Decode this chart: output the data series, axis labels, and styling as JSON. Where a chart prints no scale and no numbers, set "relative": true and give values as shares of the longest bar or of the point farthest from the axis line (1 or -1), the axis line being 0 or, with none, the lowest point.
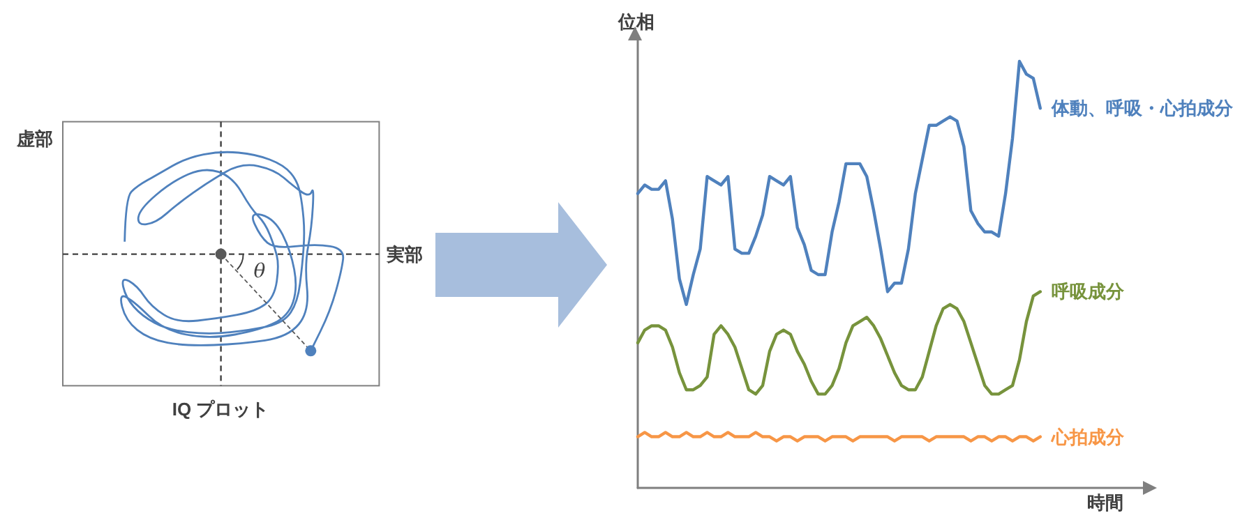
{
  "chart_data": [
    {
      "type": "other",
      "title": "IQ プロット",
      "xlabel": "実部",
      "ylabel": "虚部",
      "annotations": [
        "θ"
      ]
    },
    {
      "type": "line",
      "xlabel": "時間",
      "ylabel": "位相",
      "relative": true,
      "grid": false,
      "legend": false,
      "marker": "none",
      "line_style": "solid",
      "categories": [
        null,
        null,
        null,
        null,
        null,
        null,
        null,
        null,
        null,
        null,
        null,
        null,
        null,
        null,
        null,
        null,
        null,
        null,
        null,
        null,
        null,
        null,
        null,
        null,
        null,
        null,
        null,
        null,
        null,
        null,
        null,
        null,
        null,
        null,
        null,
        null,
        null,
        null,
        null,
        null,
        null,
        null,
        null,
        null,
        null,
        null,
        null,
        null,
        null,
        null,
        null,
        null,
        null,
        null,
        null,
        null,
        null,
        null,
        null
      ],
      "series": [
        {
          "name": "体動、呼吸・心拍成分",
          "color": "#4f81bd",
          "values": [
            0.69,
            0.71,
            0.7,
            0.7,
            0.72,
            0.63,
            0.49,
            0.43,
            0.5,
            0.56,
            0.73,
            0.72,
            0.71,
            0.73,
            0.56,
            0.55,
            0.55,
            0.59,
            0.64,
            0.73,
            0.72,
            0.71,
            0.73,
            0.61,
            0.57,
            0.51,
            0.5,
            0.5,
            0.6,
            0.67,
            0.76,
            0.76,
            0.76,
            0.73,
            0.65,
            0.56,
            0.46,
            0.48,
            0.48,
            0.56,
            0.69,
            0.77,
            0.85,
            0.85,
            0.86,
            0.87,
            0.86,
            0.8,
            0.65,
            0.62,
            0.6,
            0.6,
            0.59,
            0.69,
            0.82,
            1,
            0.97,
            0.96,
            0.89
          ]
        },
        {
          "name": "呼吸成分",
          "color": "#77933c",
          "values": [
            0.34,
            0.37,
            0.38,
            0.38,
            0.37,
            0.33,
            0.27,
            0.23,
            0.23,
            0.24,
            0.26,
            0.36,
            0.38,
            0.36,
            0.33,
            0.28,
            0.23,
            0.22,
            0.24,
            0.32,
            0.36,
            0.37,
            0.36,
            0.32,
            0.29,
            0.25,
            0.22,
            0.22,
            0.24,
            0.28,
            0.34,
            0.38,
            0.39,
            0.4,
            0.38,
            0.35,
            0.31,
            0.27,
            0.24,
            0.23,
            0.23,
            0.26,
            0.32,
            0.38,
            0.42,
            0.43,
            0.42,
            0.39,
            0.34,
            0.29,
            0.24,
            0.22,
            0.22,
            0.23,
            0.24,
            0.3,
            0.39,
            0.45,
            0.46
          ]
        },
        {
          "name": "心拍成分",
          "color": "#f79646",
          "values": [
            0.12,
            0.13,
            0.12,
            0.12,
            0.13,
            0.12,
            0.12,
            0.13,
            0.12,
            0.12,
            0.13,
            0.12,
            0.12,
            0.13,
            0.12,
            0.12,
            0.12,
            0.13,
            0.12,
            0.12,
            0.11,
            0.12,
            0.12,
            0.11,
            0.12,
            0.12,
            0.12,
            0.11,
            0.12,
            0.12,
            0.12,
            0.11,
            0.12,
            0.12,
            0.12,
            0.12,
            0.12,
            0.11,
            0.12,
            0.12,
            0.12,
            0.12,
            0.11,
            0.12,
            0.12,
            0.12,
            0.12,
            0.12,
            0.11,
            0.12,
            0.12,
            0.11,
            0.12,
            0.12,
            0.11,
            0.12,
            0.12,
            0.11,
            0.12
          ]
        }
      ]
    }
  ]
}
